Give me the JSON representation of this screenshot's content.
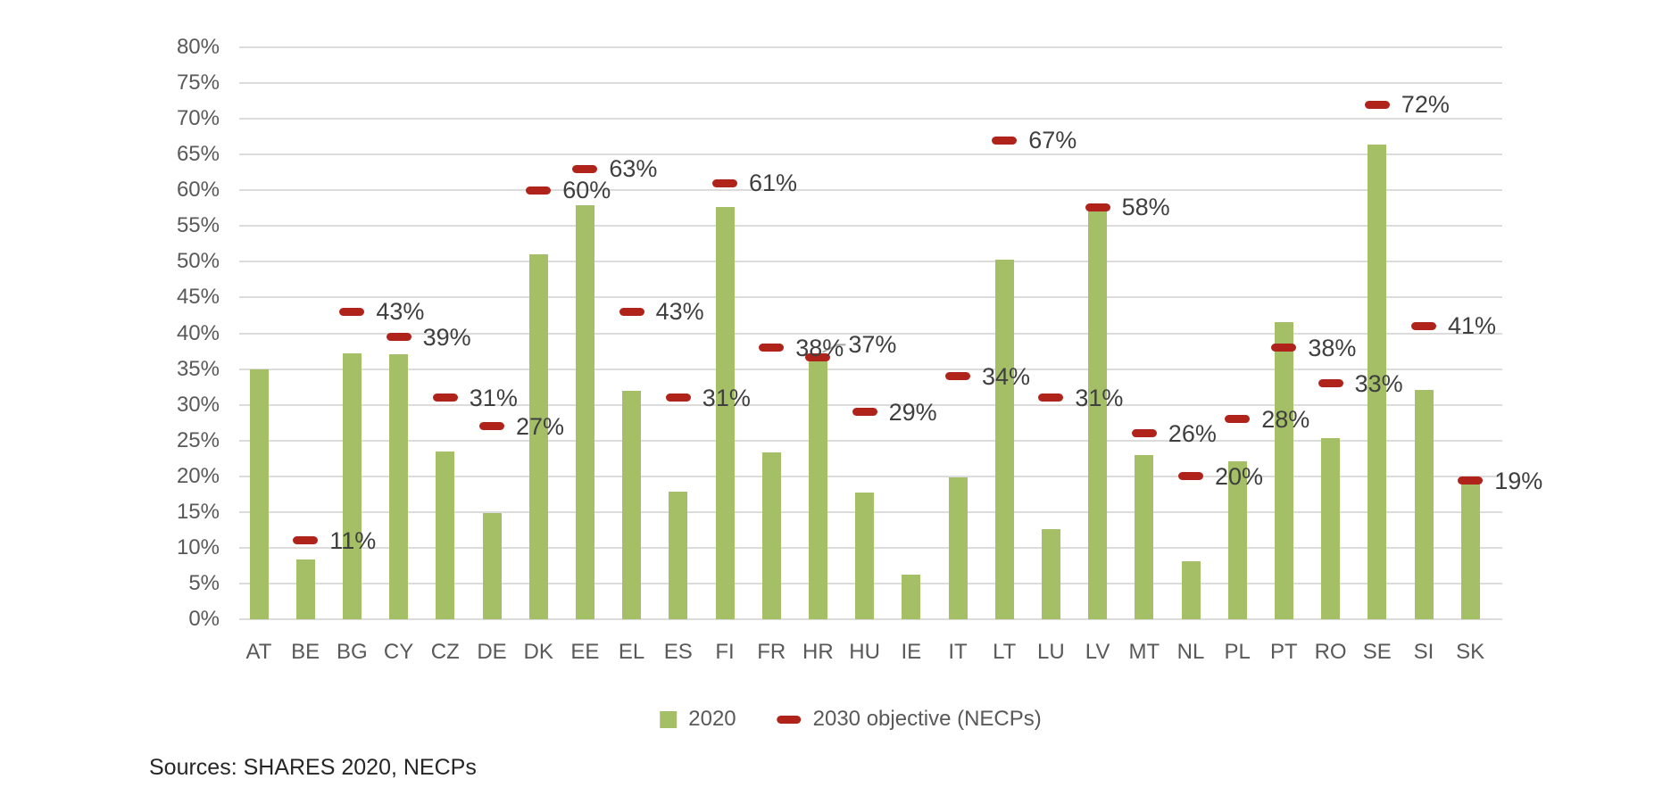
{
  "chart_data": {
    "type": "bar",
    "title": "",
    "categories": [
      "AT",
      "BE",
      "BG",
      "CY",
      "CZ",
      "DE",
      "DK",
      "EE",
      "EL",
      "ES",
      "FI",
      "FR",
      "HR",
      "HU",
      "IE",
      "IT",
      "LT",
      "LU",
      "LV",
      "MT",
      "NL",
      "PL",
      "PT",
      "RO",
      "SE",
      "SI",
      "SK"
    ],
    "series": [
      {
        "name": "2020",
        "type": "bar",
        "color": "#A4BF66",
        "values": [
          35.0,
          8.4,
          37.2,
          37.1,
          23.5,
          14.8,
          51.1,
          57.9,
          31.9,
          17.9,
          57.6,
          23.4,
          36.9,
          17.7,
          6.3,
          19.9,
          50.3,
          12.6,
          57.1,
          23.0,
          8.1,
          22.1,
          41.5,
          25.3,
          66.4,
          32.1,
          19.4
        ]
      },
      {
        "name": "2030 objective (NECPs)",
        "type": "target-dash",
        "color": "#B0231B",
        "values": [
          null,
          11,
          43,
          39,
          31,
          27,
          60,
          63,
          43,
          31,
          61,
          38,
          37,
          29,
          null,
          34,
          67,
          31,
          58,
          26,
          20,
          28,
          38,
          33,
          72,
          41,
          19
        ],
        "data_labels": [
          "",
          "11%",
          "43%",
          "39%",
          "31%",
          "27%",
          "60%",
          "63%",
          "43%",
          "31%",
          "61%",
          "38%",
          "37%",
          "29%",
          "",
          "34%",
          "67%",
          "31%",
          "58%",
          "26%",
          "20%",
          "28%",
          "38%",
          "33%",
          "72%",
          "41%",
          "19%"
        ],
        "dash_y": [
          null,
          11,
          43,
          39.5,
          31,
          27,
          60,
          63,
          43,
          31,
          61,
          38,
          36.6,
          29,
          null,
          34,
          67,
          31,
          57.6,
          26,
          20,
          28,
          38,
          33,
          72,
          41,
          19.4
        ]
      }
    ],
    "ylim": [
      0,
      80
    ],
    "ytick_step": 5,
    "y_tick_labels": [
      "80%",
      "75%",
      "70%",
      "65%",
      "60%",
      "55%",
      "50%",
      "45%",
      "40%",
      "35%",
      "30%",
      "25%",
      "20%",
      "15%",
      "10%",
      "5%",
      "0%"
    ],
    "grid": true,
    "legend_position": "bottom-center",
    "callout": {
      "category": "HR",
      "label": "37%",
      "label_y": 38.4
    }
  },
  "footer": {
    "sources": "Sources: SHARES 2020, NECPs"
  }
}
